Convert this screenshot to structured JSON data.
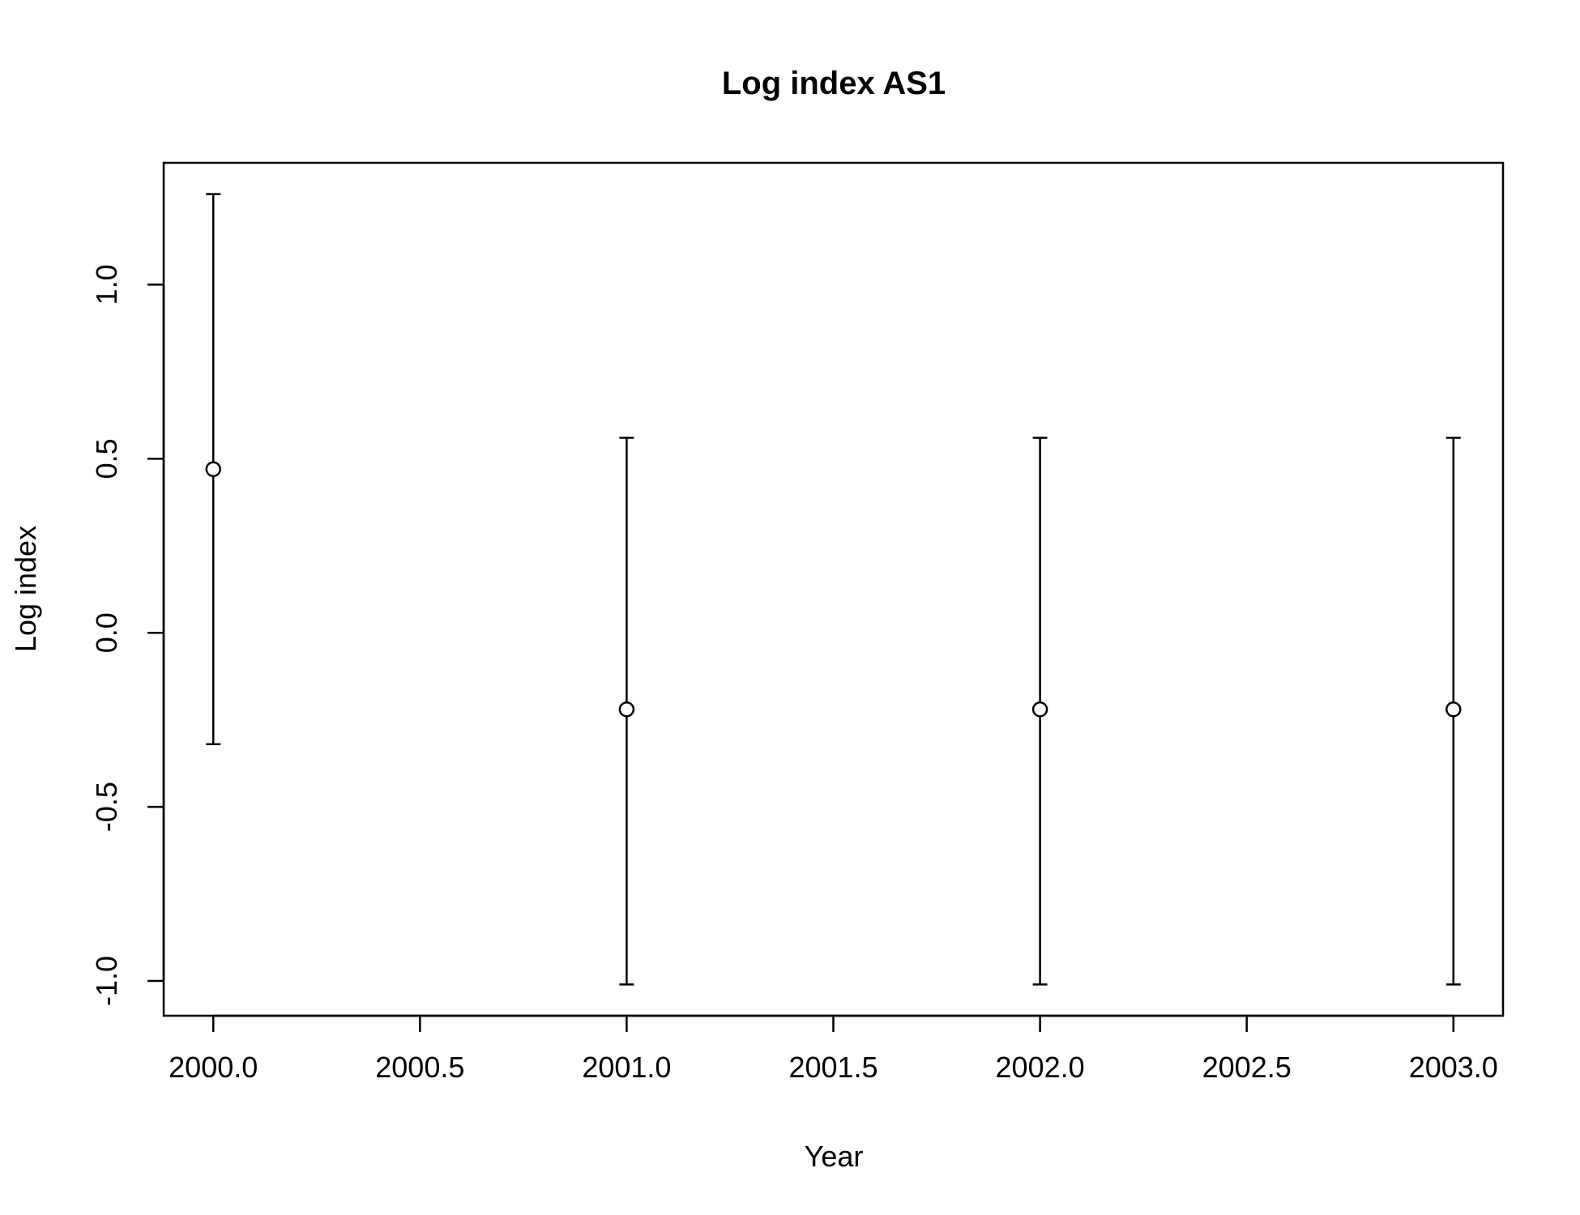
{
  "chart_data": {
    "type": "scatter",
    "title": "Log index AS1",
    "xlabel": "Year",
    "ylabel": "Log index",
    "xlim": [
      1999.88,
      2003.12
    ],
    "ylim": [
      -1.1,
      1.35
    ],
    "x_ticks": [
      2000.0,
      2000.5,
      2001.0,
      2001.5,
      2002.0,
      2002.5,
      2003.0
    ],
    "x_tick_labels": [
      "2000.0",
      "2000.5",
      "2001.0",
      "2001.5",
      "2002.0",
      "2002.5",
      "2003.0"
    ],
    "y_ticks": [
      -1.0,
      -0.5,
      0.0,
      0.5,
      1.0
    ],
    "y_tick_labels": [
      "-1.0",
      "-0.5",
      "0.0",
      "0.5",
      "1.0"
    ],
    "grid": false,
    "points": [
      {
        "x": 2000,
        "y": 0.47,
        "lower": -0.32,
        "upper": 1.26
      },
      {
        "x": 2001,
        "y": -0.22,
        "lower": -1.01,
        "upper": 0.56
      },
      {
        "x": 2002,
        "y": -0.22,
        "lower": -1.01,
        "upper": 0.56
      },
      {
        "x": 2003,
        "y": -0.22,
        "lower": -1.01,
        "upper": 0.56
      }
    ]
  }
}
